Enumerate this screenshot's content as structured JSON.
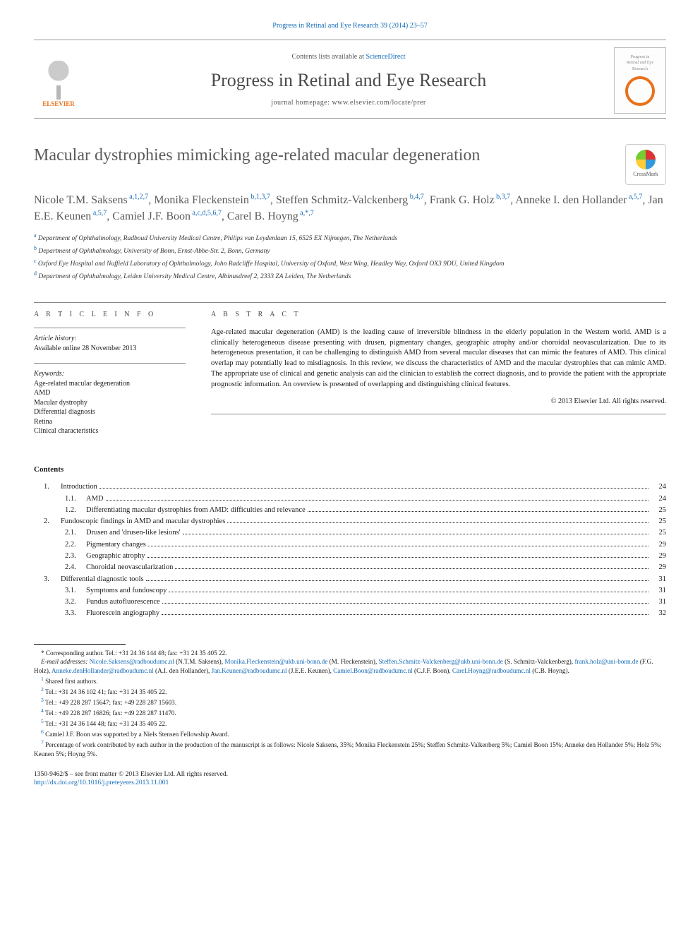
{
  "citation": "Progress in Retinal and Eye Research 39 (2014) 23–57",
  "masthead": {
    "contents_prefix": "Contents lists available at ",
    "contents_link": "ScienceDirect",
    "journal": "Progress in Retinal and Eye Research",
    "homepage_prefix": "journal homepage: ",
    "homepage_url": "www.elsevier.com/locate/prer",
    "publisher_label": "ELSEVIER"
  },
  "article": {
    "title": "Macular dystrophies mimicking age-related macular degeneration",
    "crossmark_label": "CrossMark"
  },
  "authors": [
    {
      "name": "Nicole T.M. Saksens",
      "sup": "a,1,2,7"
    },
    {
      "name": "Monika Fleckenstein",
      "sup": "b,1,3,7"
    },
    {
      "name": "Steffen Schmitz-Valckenberg",
      "sup": "b,4,7"
    },
    {
      "name": "Frank G. Holz",
      "sup": "b,3,7"
    },
    {
      "name": "Anneke I. den Hollander",
      "sup": "a,5,7"
    },
    {
      "name": "Jan E.E. Keunen",
      "sup": "a,5,7"
    },
    {
      "name": "Camiel J.F. Boon",
      "sup": "a,c,d,5,6,7"
    },
    {
      "name": "Carel B. Hoyng",
      "sup": "a,*,7"
    }
  ],
  "affiliations": [
    {
      "key": "a",
      "text": "Department of Ophthalmology, Radboud University Medical Centre, Philips van Leydenlaan 15, 6525 EX Nijmegen, The Netherlands"
    },
    {
      "key": "b",
      "text": "Department of Ophthalmology, University of Bonn, Ernst-Abbe-Str. 2, Bonn, Germany"
    },
    {
      "key": "c",
      "text": "Oxford Eye Hospital and Nuffield Laboratory of Ophthalmology, John Radcliffe Hospital, University of Oxford, West Wing, Headley Way, Oxford OX3 9DU, United Kingdom"
    },
    {
      "key": "d",
      "text": "Department of Ophthalmology, Leiden University Medical Centre, Albinusdreef 2, 2333 ZA Leiden, The Netherlands"
    }
  ],
  "article_info": {
    "label": "A R T I C L E   I N F O",
    "history_label": "Article history:",
    "history_text": "Available online 28 November 2013",
    "keywords_label": "Keywords:",
    "keywords": [
      "Age-related macular degeneration",
      "AMD",
      "Macular dystrophy",
      "Differential diagnosis",
      "Retina",
      "Clinical characteristics"
    ]
  },
  "abstract": {
    "label": "A B S T R A C T",
    "text": "Age-related macular degeneration (AMD) is the leading cause of irreversible blindness in the elderly population in the Western world. AMD is a clinically heterogeneous disease presenting with drusen, pigmentary changes, geographic atrophy and/or choroidal neovascularization. Due to its heterogeneous presentation, it can be challenging to distinguish AMD from several macular diseases that can mimic the features of AMD. This clinical overlap may potentially lead to misdiagnosis. In this review, we discuss the characteristics of AMD and the macular dystrophies that can mimic AMD. The appropriate use of clinical and genetic analysis can aid the clinician to establish the correct diagnosis, and to provide the patient with the appropriate prognostic information. An overview is presented of overlapping and distinguishing clinical features.",
    "copyright": "© 2013 Elsevier Ltd. All rights reserved."
  },
  "contents": {
    "heading": "Contents",
    "items": [
      {
        "level": 1,
        "num": "1.",
        "title": "Introduction",
        "page": "24"
      },
      {
        "level": 2,
        "num": "1.1.",
        "title": "AMD",
        "page": "24"
      },
      {
        "level": 2,
        "num": "1.2.",
        "title": "Differentiating macular dystrophies from AMD: difficulties and relevance",
        "page": "25"
      },
      {
        "level": 1,
        "num": "2.",
        "title": "Fundoscopic findings in AMD and macular dystrophies",
        "page": "25"
      },
      {
        "level": 2,
        "num": "2.1.",
        "title": "Drusen and 'drusen-like lesions'",
        "page": "25"
      },
      {
        "level": 2,
        "num": "2.2.",
        "title": "Pigmentary changes",
        "page": "29"
      },
      {
        "level": 2,
        "num": "2.3.",
        "title": "Geographic atrophy",
        "page": "29"
      },
      {
        "level": 2,
        "num": "2.4.",
        "title": "Choroidal neovascularization",
        "page": "29"
      },
      {
        "level": 1,
        "num": "3.",
        "title": "Differential diagnostic tools",
        "page": "31"
      },
      {
        "level": 2,
        "num": "3.1.",
        "title": "Symptoms and fundoscopy",
        "page": "31"
      },
      {
        "level": 2,
        "num": "3.2.",
        "title": "Fundus autofluorescence",
        "page": "31"
      },
      {
        "level": 2,
        "num": "3.3.",
        "title": "Fluorescein angiography",
        "page": "32"
      }
    ]
  },
  "footnotes": {
    "corresponding": "* Corresponding author. Tel.: +31 24 36 144 48; fax: +31 24 35 405 22.",
    "email_label": "E-mail addresses:",
    "emails": [
      {
        "addr": "Nicole.Saksens@radboudumc.nl",
        "who": "(N.T.M. Saksens)"
      },
      {
        "addr": "Monika.Fleckenstein@ukb.uni-bonn.de",
        "who": "(M. Fleckenstein)"
      },
      {
        "addr": "Steffen.Schmitz-Valckenberg@ukb.uni-bonn.de",
        "who": "(S. Schmitz-Valckenberg)"
      },
      {
        "addr": "frank.holz@uni-bonn.de",
        "who": "(F.G. Holz)"
      },
      {
        "addr": "Anneke.denHollander@radboudumc.nl",
        "who": "(A.I. den Hollander)"
      },
      {
        "addr": "Jan.Keunen@radboudumc.nl",
        "who": "(J.E.E. Keunen)"
      },
      {
        "addr": "Camiel.Boon@radboudumc.nl",
        "who": "(C.J.F. Boon)"
      },
      {
        "addr": "Carel.Hoyng@radboudumc.nl",
        "who": "(C.B. Hoyng)"
      }
    ],
    "notes": [
      {
        "n": "1",
        "text": "Shared first authors."
      },
      {
        "n": "2",
        "text": "Tel.: +31 24 36 102 41; fax: +31 24 35 405 22."
      },
      {
        "n": "3",
        "text": "Tel.: +49 228 287 15647; fax: +49 228 287 15603."
      },
      {
        "n": "4",
        "text": "Tel.: +49 228 287 16826; fax: +49 228 287 11470."
      },
      {
        "n": "5",
        "text": "Tel.: +31 24 36 144 48; fax: +31 24 35 405 22."
      },
      {
        "n": "6",
        "text": "Camiel J.F. Boon was supported by a Niels Stensen Fellowship Award."
      },
      {
        "n": "7",
        "text": "Percentage of work contributed by each author in the production of the manuscript is as follows: Nicole Saksens, 35%; Monika Fleckenstein 25%; Steffen Schmitz-Valkenberg 5%; Camiel Boon 15%; Anneke den Hollander 5%; Holz 5%; Keunen 5%; Hoyng 5%."
      }
    ]
  },
  "bottom": {
    "issn_line": "1350-9462/$ – see front matter © 2013 Elsevier Ltd. All rights reserved.",
    "doi": "http://dx.doi.org/10.1016/j.preteyeres.2013.11.001"
  },
  "colors": {
    "link": "#1169b8",
    "accent": "#e9711c",
    "heading_gray": "#5a5a5a",
    "text": "#1a1a1a"
  }
}
